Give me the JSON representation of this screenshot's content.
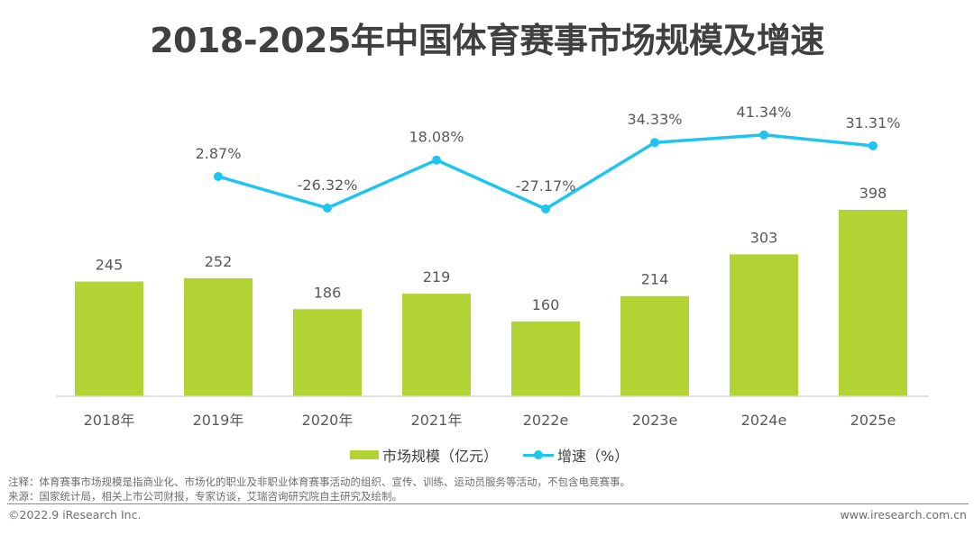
{
  "title": "2018-2025年中国体育赛事市场规模及增速",
  "colors": {
    "bar": "#b3d334",
    "line": "#1fc5ee",
    "text": "#595959",
    "axis": "#d9d9d9"
  },
  "chart_data": {
    "type": "bar+line",
    "title": "2018-2025年中国体育赛事市场规模及增速",
    "categories": [
      "2018年",
      "2019年",
      "2020年",
      "2021年",
      "2022e",
      "2023e",
      "2024e",
      "2025e"
    ],
    "series": [
      {
        "name": "市场规模（亿元）",
        "type": "bar",
        "axis": "left",
        "values": [
          245,
          252,
          186,
          219,
          160,
          214,
          303,
          398
        ],
        "labels": [
          "245",
          "252",
          "186",
          "219",
          "160",
          "214",
          "303",
          "398"
        ]
      },
      {
        "name": "增速（%）",
        "type": "line",
        "axis": "right",
        "values": [
          null,
          2.87,
          -26.32,
          18.08,
          -27.17,
          34.33,
          41.34,
          31.31
        ],
        "labels": [
          null,
          "2.87%",
          "-26.32%",
          "18.08%",
          "-27.17%",
          "34.33%",
          "41.34%",
          "31.31%"
        ]
      }
    ],
    "xlabel": "",
    "ylabel": "",
    "ylim_left": [
      0,
      400
    ],
    "grid": false,
    "legend": "bottom-center"
  },
  "legend": {
    "bar_label": "市场规模（亿元）",
    "line_label": "增速（%）"
  },
  "footer": {
    "note": "注释：体育赛事市场规模是指商业化、市场化的职业及非职业体育赛事活动的组织、宣传、训练、运动员服务等活动，不包含电竞赛事。",
    "source": "来源：国家统计局，相关上市公司财报，专家访谈，艾瑞咨询研究院自主研究及绘制。",
    "copyright": "©2022.9 iResearch Inc.",
    "website": "www.iresearch.com.cn"
  }
}
